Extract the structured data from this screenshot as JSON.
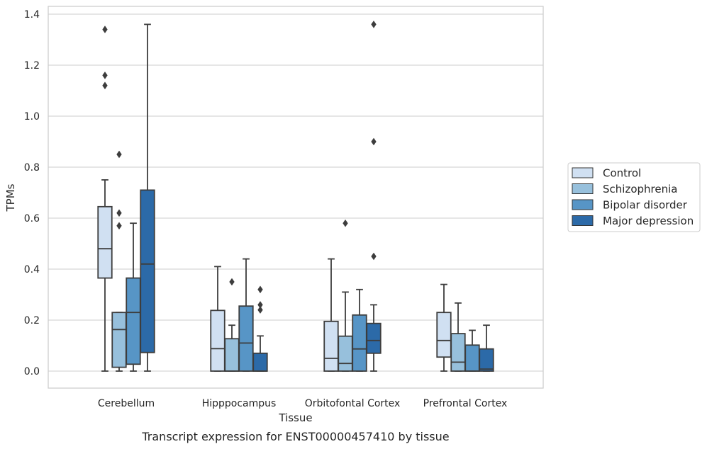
{
  "chart_data": {
    "type": "box",
    "xlabel": "Tissue",
    "ylabel": "TPMs",
    "caption": "Transcript expression for ENST00000457410 by tissue",
    "ylim": [
      -0.065,
      1.43
    ],
    "yticks": [
      0.0,
      0.2,
      0.4,
      0.6,
      0.8,
      1.0,
      1.2,
      1.4
    ],
    "ytick_labels": [
      "0.0",
      "0.2",
      "0.4",
      "0.6",
      "0.8",
      "1.0",
      "1.2",
      "1.4"
    ],
    "grid": true,
    "legend_position": "right",
    "categories": [
      "Cerebellum",
      "Hipppocampus",
      "Orbitofontal Cortex",
      "Prefrontal Cortex"
    ],
    "series": [
      {
        "name": "Control",
        "color": "#d0e0f2",
        "boxes": [
          {
            "whisker_low": 0.0,
            "q1": 0.365,
            "median": 0.48,
            "q3": 0.645,
            "whisker_high": 0.75,
            "outliers": [
              1.12,
              1.16,
              1.34
            ]
          },
          {
            "whisker_low": 0.0,
            "q1": 0.0,
            "median": 0.088,
            "q3": 0.238,
            "whisker_high": 0.41,
            "outliers": []
          },
          {
            "whisker_low": 0.0,
            "q1": 0.0,
            "median": 0.05,
            "q3": 0.195,
            "whisker_high": 0.44,
            "outliers": []
          },
          {
            "whisker_low": 0.0,
            "q1": 0.055,
            "median": 0.12,
            "q3": 0.23,
            "whisker_high": 0.34,
            "outliers": []
          }
        ]
      },
      {
        "name": "Schizophrenia",
        "color": "#97c0dc",
        "boxes": [
          {
            "whisker_low": 0.0,
            "q1": 0.015,
            "median": 0.163,
            "q3": 0.23,
            "whisker_high": 0.23,
            "outliers": [
              0.57,
              0.62,
              0.85
            ]
          },
          {
            "whisker_low": 0.0,
            "q1": 0.0,
            "median": 0.0,
            "q3": 0.127,
            "whisker_high": 0.18,
            "outliers": [
              0.35
            ]
          },
          {
            "whisker_low": 0.0,
            "q1": 0.0,
            "median": 0.03,
            "q3": 0.137,
            "whisker_high": 0.31,
            "outliers": [
              0.58
            ]
          },
          {
            "whisker_low": 0.0,
            "q1": 0.0,
            "median": 0.035,
            "q3": 0.147,
            "whisker_high": 0.267,
            "outliers": []
          }
        ]
      },
      {
        "name": "Bipolar disorder",
        "color": "#5795c6",
        "boxes": [
          {
            "whisker_low": 0.0,
            "q1": 0.027,
            "median": 0.23,
            "q3": 0.365,
            "whisker_high": 0.58,
            "outliers": []
          },
          {
            "whisker_low": 0.0,
            "q1": 0.0,
            "median": 0.11,
            "q3": 0.255,
            "whisker_high": 0.44,
            "outliers": []
          },
          {
            "whisker_low": 0.0,
            "q1": 0.0,
            "median": 0.087,
            "q3": 0.22,
            "whisker_high": 0.32,
            "outliers": []
          },
          {
            "whisker_low": 0.0,
            "q1": 0.0,
            "median": 0.0,
            "q3": 0.102,
            "whisker_high": 0.16,
            "outliers": []
          }
        ]
      },
      {
        "name": "Major depression",
        "color": "#2c6aa8",
        "boxes": [
          {
            "whisker_low": 0.0,
            "q1": 0.073,
            "median": 0.42,
            "q3": 0.71,
            "whisker_high": 1.36,
            "outliers": []
          },
          {
            "whisker_low": 0.0,
            "q1": 0.0,
            "median": 0.0,
            "q3": 0.07,
            "whisker_high": 0.138,
            "outliers": [
              0.24,
              0.26,
              0.32
            ]
          },
          {
            "whisker_low": 0.0,
            "q1": 0.07,
            "median": 0.12,
            "q3": 0.187,
            "whisker_high": 0.26,
            "outliers": [
              0.45,
              0.9,
              1.36
            ]
          },
          {
            "whisker_low": 0.0,
            "q1": 0.0,
            "median": 0.008,
            "q3": 0.087,
            "whisker_high": 0.18,
            "outliers": []
          }
        ]
      }
    ]
  }
}
